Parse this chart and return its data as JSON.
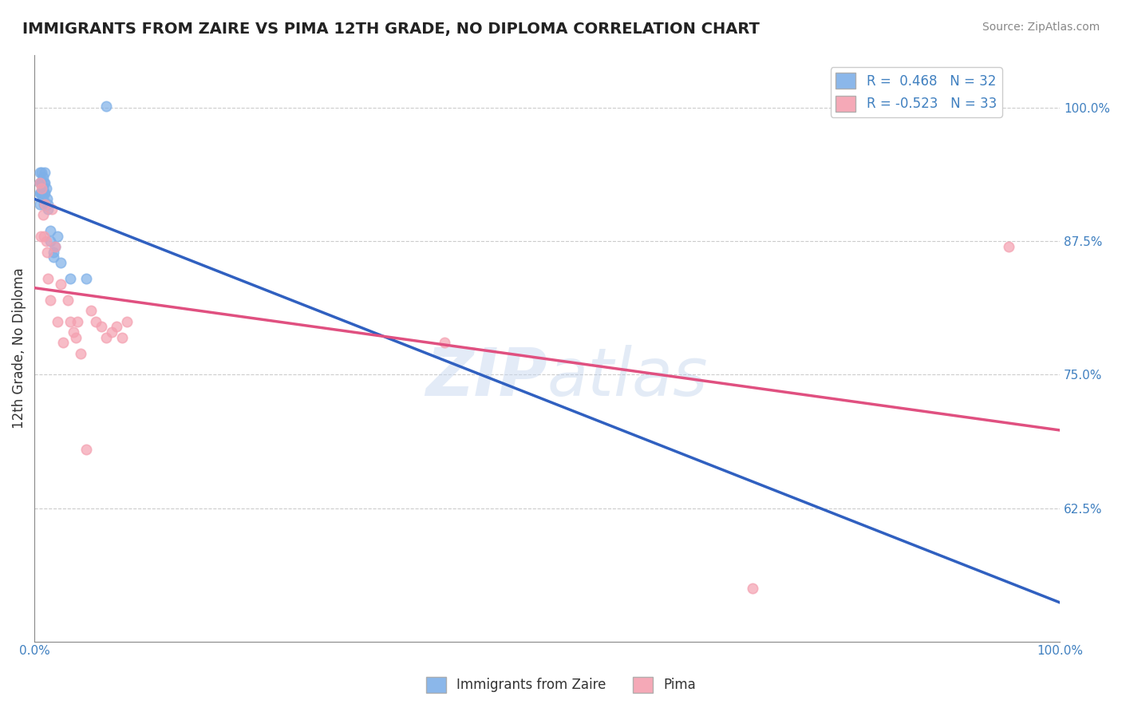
{
  "title": "IMMIGRANTS FROM ZAIRE VS PIMA 12TH GRADE, NO DIPLOMA CORRELATION CHART",
  "source_text": "Source: ZipAtlas.com",
  "ylabel": "12th Grade, No Diploma",
  "xlim": [
    0.0,
    1.0
  ],
  "ylim": [
    0.5,
    1.05
  ],
  "x_tick_labels": [
    "0.0%",
    "100.0%"
  ],
  "y_tick_labels": [
    "62.5%",
    "75.0%",
    "87.5%",
    "100.0%"
  ],
  "y_tick_vals": [
    0.625,
    0.75,
    0.875,
    1.0
  ],
  "blue_r": 0.468,
  "blue_n": 32,
  "pink_r": -0.523,
  "pink_n": 33,
  "blue_color": "#7EB0E8",
  "pink_color": "#F4A0B0",
  "blue_line_color": "#3060C0",
  "pink_line_color": "#E05080",
  "watermark_zip": "ZIP",
  "watermark_atlas": "atlas",
  "blue_points_x": [
    0.005,
    0.005,
    0.005,
    0.005,
    0.006,
    0.006,
    0.007,
    0.007,
    0.007,
    0.008,
    0.008,
    0.008,
    0.009,
    0.009,
    0.009,
    0.01,
    0.01,
    0.01,
    0.011,
    0.012,
    0.013,
    0.013,
    0.015,
    0.015,
    0.018,
    0.018,
    0.02,
    0.022,
    0.025,
    0.035,
    0.05,
    0.07
  ],
  "blue_points_y": [
    0.94,
    0.93,
    0.92,
    0.91,
    0.93,
    0.92,
    0.94,
    0.93,
    0.92,
    0.935,
    0.925,
    0.915,
    0.93,
    0.92,
    0.91,
    0.94,
    0.93,
    0.92,
    0.925,
    0.915,
    0.91,
    0.905,
    0.885,
    0.875,
    0.865,
    0.86,
    0.87,
    0.88,
    0.855,
    0.84,
    0.84,
    1.002
  ],
  "pink_points_x": [
    0.005,
    0.006,
    0.007,
    0.008,
    0.009,
    0.01,
    0.011,
    0.012,
    0.013,
    0.015,
    0.017,
    0.02,
    0.022,
    0.025,
    0.028,
    0.032,
    0.035,
    0.038,
    0.04,
    0.042,
    0.045,
    0.05,
    0.055,
    0.06,
    0.065,
    0.07,
    0.075,
    0.08,
    0.085,
    0.09,
    0.4,
    0.7,
    0.95
  ],
  "pink_points_y": [
    0.93,
    0.88,
    0.925,
    0.9,
    0.88,
    0.91,
    0.875,
    0.865,
    0.84,
    0.82,
    0.905,
    0.87,
    0.8,
    0.835,
    0.78,
    0.82,
    0.8,
    0.79,
    0.785,
    0.8,
    0.77,
    0.68,
    0.81,
    0.8,
    0.795,
    0.785,
    0.79,
    0.795,
    0.785,
    0.8,
    0.78,
    0.55,
    0.87
  ],
  "background_color": "#FFFFFF",
  "grid_color": "#CCCCCC",
  "marker_size": 80,
  "marker_lw": 1.2
}
